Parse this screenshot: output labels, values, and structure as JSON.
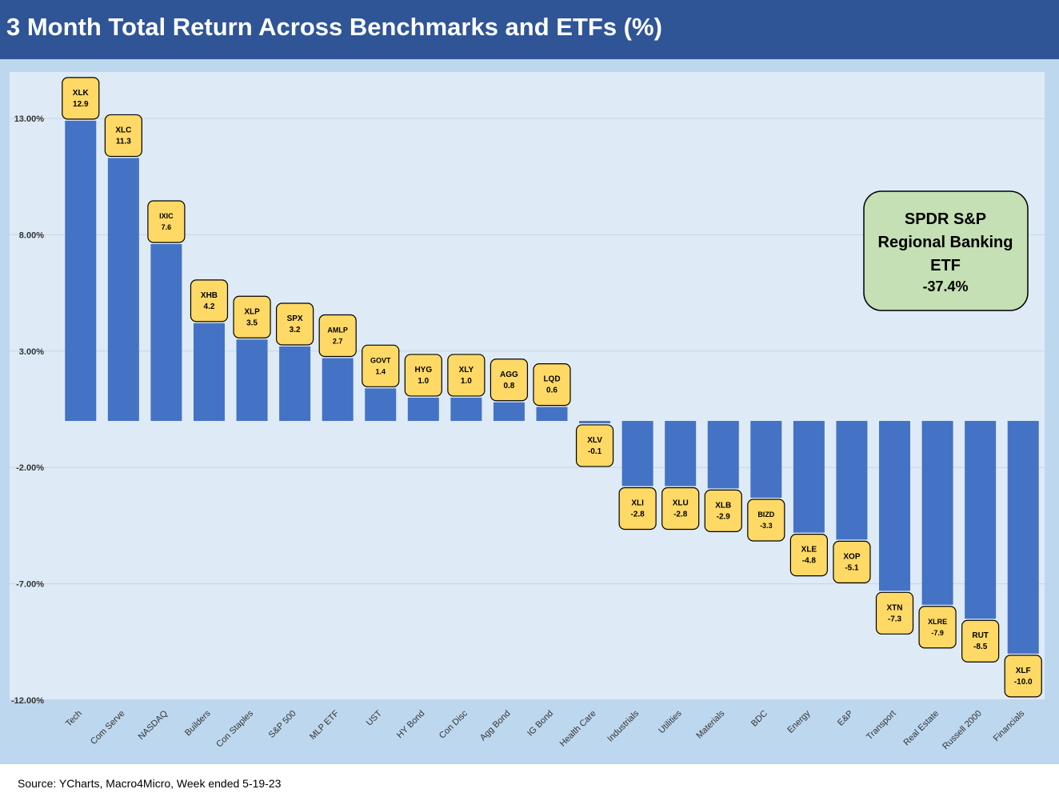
{
  "title": "3 Month Total Return Across Benchmarks and ETFs (%)",
  "source": "Source: YCharts, Macro4Micro, Week ended 5-19-23",
  "callout": {
    "lines": [
      "SPDR S&P",
      "Regional Banking",
      "ETF",
      "-37.4%"
    ],
    "fill": "#c5e0b4"
  },
  "colors": {
    "bar": "#4472c4",
    "label_fill": "#ffd966",
    "title_bg": "#2f5597",
    "plot_bg": "#deebf7",
    "outer_bg": "#bdd7ee"
  },
  "chart_data": {
    "type": "bar",
    "title": "3 Month Total Return Across Benchmarks and ETFs (%)",
    "xlabel": "",
    "ylabel": "",
    "ylim": [
      -12,
      15
    ],
    "yticks": [
      13,
      8,
      3,
      -2,
      -7,
      -12
    ],
    "ytick_labels": [
      "13.00%",
      "8.00%",
      "3.00%",
      "-2.00%",
      "-7.00%",
      "-12.00%"
    ],
    "categories": [
      "Tech",
      "Com Serve",
      "NASDAQ",
      "Builders",
      "Con Staples",
      "S&P 500",
      "MLP ETF",
      "UST",
      "HY Bond",
      "Con Disc",
      "Agg Bond",
      "IG Bond",
      "Health Care",
      "Industrials",
      "Utilities",
      "Materials",
      "BDC",
      "Energy",
      "E&P",
      "Transport",
      "Real Estate",
      "Russell 2000",
      "Financials"
    ],
    "tickers": [
      "XLK",
      "XLC",
      "IXIC",
      "XHB",
      "XLP",
      "SPX",
      "AMLP",
      "GOVT",
      "HYG",
      "XLY",
      "AGG",
      "LQD",
      "XLV",
      "XLI",
      "XLU",
      "XLB",
      "BIZD",
      "XLE",
      "XOP",
      "XTN",
      "XLRE",
      "RUT",
      "XLF"
    ],
    "values": [
      12.9,
      11.3,
      7.6,
      4.2,
      3.5,
      3.2,
      2.7,
      1.4,
      1.0,
      1.0,
      0.8,
      0.6,
      -0.1,
      -2.8,
      -2.8,
      -2.9,
      -3.3,
      -4.8,
      -5.1,
      -7.3,
      -7.9,
      -8.5,
      -10.0
    ],
    "value_labels": [
      "12.9",
      "11.3",
      "7.6",
      "4.2",
      "3.5",
      "3.2",
      "2.7",
      "1.4",
      "1.0",
      "1.0",
      "0.8",
      "0.6",
      "-0.1",
      "-2.8",
      "-2.8",
      "-2.9",
      "-3.3",
      "-4.8",
      "-5.1",
      "-7.3",
      "-7.9",
      "-8.5",
      "-10.0"
    ],
    "grid": true,
    "legend": "none"
  }
}
